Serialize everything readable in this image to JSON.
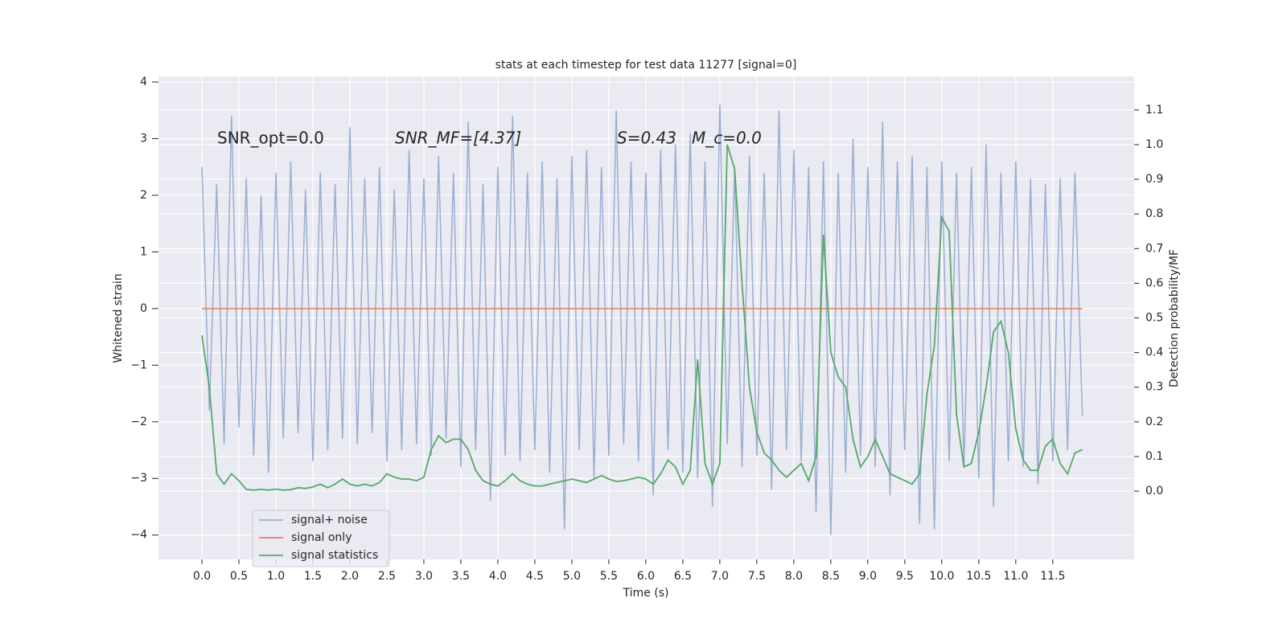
{
  "chart_data": {
    "type": "line",
    "title": "stats at each timestep for test data 11277 [signal=0]",
    "xlabel": "Time (s)",
    "ylabel": "Whitened strain",
    "y2label": "Detection probability/MF",
    "annotations": [
      "SNR_opt=0.0",
      "SNR_MF=[4.37]",
      "S=0.43",
      "M_c=0.0"
    ],
    "grid": true,
    "legend": "lower left",
    "xlim": [
      -0.587,
      12.6
    ],
    "ylim": [
      -4.43,
      4.1
    ],
    "y2lim": [
      -0.197,
      1.197
    ],
    "xticks": [
      {
        "value": 0,
        "label": "0.0"
      },
      0.5,
      {
        "value": 1,
        "label": "1.0"
      },
      1.5,
      {
        "value": 2,
        "label": "2.0"
      },
      2.5,
      {
        "value": 3,
        "label": "3.0"
      },
      3.5,
      {
        "value": 4,
        "label": "4.0"
      },
      4.5,
      {
        "value": 5,
        "label": "5.0"
      },
      5.5,
      {
        "value": 6,
        "label": "6.0"
      },
      6.5,
      {
        "value": 7,
        "label": "7.0"
      },
      7.5,
      {
        "value": 8,
        "label": "8.0"
      },
      8.5,
      {
        "value": 9,
        "label": "9.0"
      },
      9.5,
      {
        "value": 10,
        "label": "10.0"
      },
      10.5,
      {
        "value": 11,
        "label": "11.0"
      },
      11.5
    ],
    "yticks": [
      {
        "value": -4,
        "label": "−4"
      },
      {
        "value": -3,
        "label": "−3"
      },
      {
        "value": -2,
        "label": "−2"
      },
      {
        "value": -1,
        "label": "−1"
      },
      0,
      1,
      2,
      3,
      4
    ],
    "y2ticks": [
      {
        "value": 0,
        "label": "0.0"
      },
      0.1,
      0.2,
      0.3,
      0.4,
      0.5,
      0.6,
      0.7,
      0.8,
      0.9,
      {
        "value": 1,
        "label": "1.0"
      },
      1.1
    ],
    "x": [
      0,
      0.1,
      0.2,
      0.3,
      0.4,
      0.5,
      0.6,
      0.7,
      0.8,
      0.9,
      1,
      1.1,
      1.2,
      1.3,
      1.4,
      1.5,
      1.6,
      1.7,
      1.8,
      1.9,
      2,
      2.1,
      2.2,
      2.3,
      2.4,
      2.5,
      2.6,
      2.7,
      2.8,
      2.9,
      3,
      3.1,
      3.2,
      3.3,
      3.4,
      3.5,
      3.6,
      3.7,
      3.8,
      3.9,
      4,
      4.1,
      4.2,
      4.3,
      4.4,
      4.5,
      4.6,
      4.7,
      4.8,
      4.9,
      5,
      5.1,
      5.2,
      5.3,
      5.4,
      5.5,
      5.6,
      5.7,
      5.8,
      5.9,
      6,
      6.1,
      6.2,
      6.3,
      6.4,
      6.5,
      6.6,
      6.7,
      6.8,
      6.9,
      7,
      7.1,
      7.2,
      7.3,
      7.4,
      7.5,
      7.6,
      7.7,
      7.8,
      7.9,
      8,
      8.1,
      8.2,
      8.3,
      8.4,
      8.5,
      8.6,
      8.7,
      8.8,
      8.9,
      9,
      9.1,
      9.2,
      9.3,
      9.4,
      9.5,
      9.6,
      9.7,
      9.8,
      9.9,
      10,
      10.1,
      10.2,
      10.3,
      10.4,
      10.5,
      10.6,
      10.7,
      10.8,
      10.9,
      11,
      11.1,
      11.2,
      11.3,
      11.4,
      11.5,
      11.6,
      11.7,
      11.8,
      11.9
    ],
    "series": [
      {
        "name": "signal+ noise",
        "color": "#9aaed0",
        "values": [
          2.5,
          -1.8,
          2.2,
          -2.4,
          3.4,
          -2.1,
          2.3,
          -2.6,
          2.0,
          -2.9,
          2.4,
          -2.3,
          2.6,
          -2.2,
          2.1,
          -2.7,
          2.4,
          -2.5,
          2.2,
          -2.3,
          3.2,
          -2.4,
          2.3,
          -2.2,
          2.5,
          -2.7,
          2.1,
          -2.5,
          2.8,
          -2.4,
          2.3,
          -2.6,
          2.7,
          -2.3,
          2.4,
          -2.8,
          3.3,
          -2.5,
          2.2,
          -3.4,
          2.5,
          -2.6,
          3.4,
          -2.7,
          2.4,
          -2.5,
          2.6,
          -2.9,
          2.3,
          -3.9,
          2.7,
          -2.5,
          2.8,
          -3.0,
          2.5,
          -2.6,
          3.5,
          -2.4,
          2.6,
          -2.7,
          2.4,
          -3.3,
          2.8,
          -2.5,
          2.9,
          -2.9,
          3.1,
          -3.0,
          2.6,
          -3.5,
          3.6,
          -2.4,
          2.5,
          -2.8,
          2.7,
          -2.6,
          2.4,
          -3.2,
          3.5,
          -2.5,
          2.8,
          -2.7,
          2.5,
          -3.6,
          2.6,
          -4.0,
          2.4,
          -2.9,
          3.0,
          -2.6,
          2.5,
          -2.8,
          3.3,
          -3.3,
          2.6,
          -2.5,
          2.7,
          -3.8,
          2.5,
          -3.9,
          2.6,
          -2.7,
          2.4,
          -2.8,
          2.5,
          -3.0,
          2.9,
          -3.5,
          2.4,
          -2.7,
          2.6,
          -2.8,
          2.3,
          -3.1,
          2.2,
          -2.7,
          2.3,
          -2.5,
          2.4,
          -1.9
        ]
      },
      {
        "name": "signal only",
        "color": "#dd8452",
        "x": [
          0,
          11.9
        ],
        "values": [
          0,
          0
        ]
      },
      {
        "name": "signal statistics",
        "color": "#55a868",
        "axis": "y2",
        "values": [
          0.45,
          0.3,
          0.05,
          0.02,
          0.05,
          0.03,
          0.005,
          0.003,
          0.005,
          0.003,
          0.006,
          0.003,
          0.004,
          0.01,
          0.008,
          0.012,
          0.02,
          0.01,
          0.02,
          0.035,
          0.02,
          0.015,
          0.02,
          0.015,
          0.025,
          0.05,
          0.04,
          0.035,
          0.035,
          0.03,
          0.04,
          0.12,
          0.16,
          0.14,
          0.15,
          0.15,
          0.12,
          0.06,
          0.03,
          0.02,
          0.015,
          0.03,
          0.05,
          0.03,
          0.02,
          0.015,
          0.015,
          0.02,
          0.025,
          0.03,
          0.035,
          0.03,
          0.025,
          0.035,
          0.045,
          0.035,
          0.028,
          0.03,
          0.035,
          0.04,
          0.035,
          0.02,
          0.05,
          0.09,
          0.07,
          0.02,
          0.06,
          0.38,
          0.08,
          0.02,
          0.08,
          1.0,
          0.93,
          0.6,
          0.3,
          0.17,
          0.11,
          0.09,
          0.06,
          0.04,
          0.06,
          0.08,
          0.03,
          0.1,
          0.74,
          0.4,
          0.33,
          0.3,
          0.15,
          0.07,
          0.1,
          0.15,
          0.1,
          0.05,
          0.04,
          0.03,
          0.02,
          0.05,
          0.28,
          0.42,
          0.79,
          0.75,
          0.22,
          0.07,
          0.08,
          0.17,
          0.3,
          0.46,
          0.49,
          0.4,
          0.18,
          0.09,
          0.06,
          0.06,
          0.13,
          0.15,
          0.08,
          0.05,
          0.11,
          0.12
        ]
      }
    ]
  }
}
